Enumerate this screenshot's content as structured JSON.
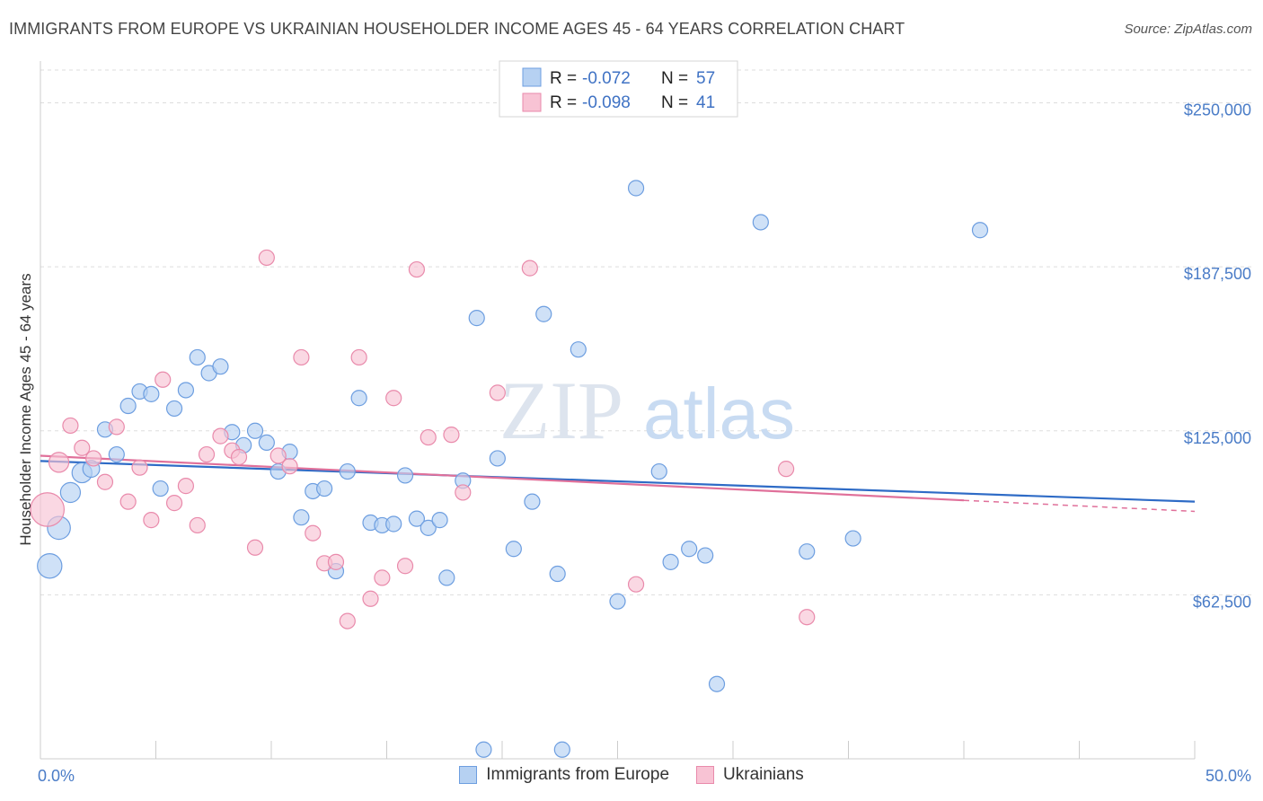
{
  "header": {
    "title": "IMMIGRANTS FROM EUROPE VS UKRAINIAN HOUSEHOLDER INCOME AGES 45 - 64 YEARS CORRELATION CHART",
    "source": "Source: ZipAtlas.com"
  },
  "watermark": {
    "zip": "ZIP",
    "atlas": "atlas"
  },
  "colors": {
    "blue_fill": "#b6d1f2",
    "blue_stroke": "#6d9ee0",
    "blue_line": "#2e6bc6",
    "pink_fill": "#f8c3d4",
    "pink_stroke": "#e98aab",
    "pink_line": "#e0709a",
    "tick_label": "#4a7cc7",
    "grid": "#dddddd"
  },
  "legend": {
    "rows": [
      {
        "r_label": "R = ",
        "r_value": "-0.072",
        "n_label": "N = ",
        "n_value": "57"
      },
      {
        "r_label": "R = ",
        "r_value": "-0.098",
        "n_label": "N = ",
        "n_value": "41"
      }
    ]
  },
  "chart_data": {
    "type": "scatter",
    "title": "IMMIGRANTS FROM EUROPE VS UKRAINIAN HOUSEHOLDER INCOME AGES 45 - 64 YEARS CORRELATION CHART",
    "xlabel": "",
    "ylabel": "Householder Income Ages 45 - 64 years",
    "xlim": [
      0,
      50
    ],
    "ylim": [
      0,
      262500
    ],
    "x_tick_labels": [
      "0.0%",
      "50.0%"
    ],
    "y_ticks": [
      62500,
      125000,
      187500,
      250000
    ],
    "y_tick_labels": [
      "$62,500",
      "$125,000",
      "$187,500",
      "$250,000"
    ],
    "grid": "horizontal dashed",
    "legend_position": "top-center",
    "series": [
      {
        "name": "Immigrants from Europe",
        "r": -0.072,
        "n": 57,
        "trend": {
          "x": [
            0,
            50
          ],
          "y": [
            113500,
            98000
          ]
        },
        "points": [
          {
            "x": 0.4,
            "y": 73500,
            "s": 1.6
          },
          {
            "x": 0.8,
            "y": 88000,
            "s": 1.5
          },
          {
            "x": 1.3,
            "y": 101500,
            "s": 1.3
          },
          {
            "x": 1.8,
            "y": 109000,
            "s": 1.3
          },
          {
            "x": 2.2,
            "y": 110500,
            "s": 1.1
          },
          {
            "x": 2.8,
            "y": 125500,
            "s": 1
          },
          {
            "x": 3.3,
            "y": 116000,
            "s": 1
          },
          {
            "x": 3.8,
            "y": 134500,
            "s": 1
          },
          {
            "x": 4.3,
            "y": 140000,
            "s": 1
          },
          {
            "x": 4.8,
            "y": 139000,
            "s": 1
          },
          {
            "x": 5.2,
            "y": 103000,
            "s": 1
          },
          {
            "x": 5.8,
            "y": 133500,
            "s": 1
          },
          {
            "x": 6.3,
            "y": 140500,
            "s": 1
          },
          {
            "x": 6.8,
            "y": 153000,
            "s": 1
          },
          {
            "x": 7.3,
            "y": 147000,
            "s": 1
          },
          {
            "x": 7.8,
            "y": 149500,
            "s": 1
          },
          {
            "x": 8.3,
            "y": 124500,
            "s": 1
          },
          {
            "x": 8.8,
            "y": 119500,
            "s": 1
          },
          {
            "x": 9.3,
            "y": 125000,
            "s": 1
          },
          {
            "x": 9.8,
            "y": 120500,
            "s": 1
          },
          {
            "x": 10.3,
            "y": 109500,
            "s": 1
          },
          {
            "x": 10.8,
            "y": 117000,
            "s": 1
          },
          {
            "x": 11.3,
            "y": 92000,
            "s": 1
          },
          {
            "x": 11.8,
            "y": 102000,
            "s": 1
          },
          {
            "x": 12.3,
            "y": 103000,
            "s": 1
          },
          {
            "x": 12.8,
            "y": 71500,
            "s": 1
          },
          {
            "x": 13.3,
            "y": 109500,
            "s": 1
          },
          {
            "x": 13.8,
            "y": 137500,
            "s": 1
          },
          {
            "x": 14.3,
            "y": 90000,
            "s": 1
          },
          {
            "x": 14.8,
            "y": 89000,
            "s": 1
          },
          {
            "x": 15.3,
            "y": 89500,
            "s": 1
          },
          {
            "x": 15.8,
            "y": 108000,
            "s": 1
          },
          {
            "x": 16.3,
            "y": 91500,
            "s": 1
          },
          {
            "x": 16.8,
            "y": 88000,
            "s": 1
          },
          {
            "x": 17.3,
            "y": 91000,
            "s": 1
          },
          {
            "x": 17.6,
            "y": 69000,
            "s": 1
          },
          {
            "x": 18.3,
            "y": 106000,
            "s": 1
          },
          {
            "x": 18.9,
            "y": 168000,
            "s": 1
          },
          {
            "x": 19.2,
            "y": 3500,
            "s": 1
          },
          {
            "x": 19.8,
            "y": 114500,
            "s": 1
          },
          {
            "x": 20.5,
            "y": 80000,
            "s": 1
          },
          {
            "x": 21.3,
            "y": 98000,
            "s": 1
          },
          {
            "x": 21.8,
            "y": 169500,
            "s": 1
          },
          {
            "x": 22.4,
            "y": 70500,
            "s": 1
          },
          {
            "x": 22.6,
            "y": 3500,
            "s": 1
          },
          {
            "x": 23.3,
            "y": 156000,
            "s": 1
          },
          {
            "x": 25.0,
            "y": 60000,
            "s": 1
          },
          {
            "x": 25.8,
            "y": 217500,
            "s": 1
          },
          {
            "x": 26.8,
            "y": 109500,
            "s": 1
          },
          {
            "x": 27.3,
            "y": 75000,
            "s": 1
          },
          {
            "x": 28.1,
            "y": 80000,
            "s": 1
          },
          {
            "x": 28.8,
            "y": 77500,
            "s": 1
          },
          {
            "x": 29.3,
            "y": 28500,
            "s": 1
          },
          {
            "x": 31.2,
            "y": 204500,
            "s": 1
          },
          {
            "x": 33.2,
            "y": 79000,
            "s": 1
          },
          {
            "x": 35.2,
            "y": 84000,
            "s": 1
          },
          {
            "x": 40.7,
            "y": 201500,
            "s": 1
          }
        ]
      },
      {
        "name": "Ukrainians",
        "r": -0.098,
        "n": 41,
        "trend": {
          "x": [
            0,
            40
          ],
          "y": [
            115500,
            98500
          ]
        },
        "trend_extension": {
          "x": [
            40,
            50
          ],
          "y": [
            98500,
            94300
          ]
        },
        "points": [
          {
            "x": 0.3,
            "y": 95000,
            "s": 2.2
          },
          {
            "x": 0.8,
            "y": 113000,
            "s": 1.3
          },
          {
            "x": 1.3,
            "y": 127000,
            "s": 1
          },
          {
            "x": 1.8,
            "y": 118500,
            "s": 1
          },
          {
            "x": 2.3,
            "y": 114500,
            "s": 1
          },
          {
            "x": 2.8,
            "y": 105500,
            "s": 1
          },
          {
            "x": 3.3,
            "y": 126500,
            "s": 1
          },
          {
            "x": 3.8,
            "y": 98000,
            "s": 1
          },
          {
            "x": 4.3,
            "y": 111000,
            "s": 1
          },
          {
            "x": 4.8,
            "y": 91000,
            "s": 1
          },
          {
            "x": 5.3,
            "y": 144500,
            "s": 1
          },
          {
            "x": 5.8,
            "y": 97500,
            "s": 1
          },
          {
            "x": 6.3,
            "y": 104000,
            "s": 1
          },
          {
            "x": 6.8,
            "y": 89000,
            "s": 1
          },
          {
            "x": 7.2,
            "y": 116000,
            "s": 1
          },
          {
            "x": 7.8,
            "y": 123000,
            "s": 1
          },
          {
            "x": 8.3,
            "y": 117500,
            "s": 1
          },
          {
            "x": 8.6,
            "y": 115000,
            "s": 1
          },
          {
            "x": 9.3,
            "y": 80500,
            "s": 1
          },
          {
            "x": 9.8,
            "y": 191000,
            "s": 1
          },
          {
            "x": 10.3,
            "y": 115500,
            "s": 1
          },
          {
            "x": 10.8,
            "y": 111500,
            "s": 1
          },
          {
            "x": 11.3,
            "y": 153000,
            "s": 1
          },
          {
            "x": 11.8,
            "y": 86000,
            "s": 1
          },
          {
            "x": 12.3,
            "y": 74500,
            "s": 1
          },
          {
            "x": 12.8,
            "y": 75000,
            "s": 1
          },
          {
            "x": 13.3,
            "y": 52500,
            "s": 1
          },
          {
            "x": 13.8,
            "y": 153000,
            "s": 1
          },
          {
            "x": 14.3,
            "y": 61000,
            "s": 1
          },
          {
            "x": 14.8,
            "y": 69000,
            "s": 1
          },
          {
            "x": 15.3,
            "y": 137500,
            "s": 1
          },
          {
            "x": 15.8,
            "y": 73500,
            "s": 1
          },
          {
            "x": 16.3,
            "y": 186500,
            "s": 1
          },
          {
            "x": 16.8,
            "y": 122500,
            "s": 1
          },
          {
            "x": 17.8,
            "y": 123500,
            "s": 1
          },
          {
            "x": 18.3,
            "y": 101500,
            "s": 1
          },
          {
            "x": 19.8,
            "y": 139500,
            "s": 1
          },
          {
            "x": 21.2,
            "y": 187000,
            "s": 1
          },
          {
            "x": 25.8,
            "y": 66500,
            "s": 1
          },
          {
            "x": 32.3,
            "y": 110500,
            "s": 1
          },
          {
            "x": 33.2,
            "y": 54000,
            "s": 1
          }
        ]
      }
    ]
  }
}
